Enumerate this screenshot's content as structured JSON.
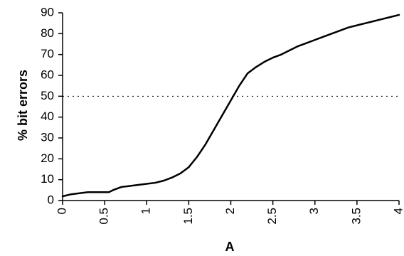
{
  "chart_data": {
    "type": "line",
    "title": "",
    "xlabel": "A",
    "ylabel": "% bit errors",
    "xlim": [
      0,
      4
    ],
    "ylim": [
      0,
      90
    ],
    "x_ticks": [
      0,
      0.5,
      1,
      1.5,
      2,
      2.5,
      3,
      3.5,
      4
    ],
    "x_tick_labels": [
      "0",
      "0.5",
      "1",
      "1.5",
      "2",
      "2.5",
      "3",
      "3.5",
      "4"
    ],
    "y_ticks": [
      0,
      10,
      20,
      30,
      40,
      50,
      60,
      70,
      80,
      90
    ],
    "y_tick_labels": [
      "0",
      "10",
      "20",
      "30",
      "40",
      "50",
      "60",
      "70",
      "80",
      "90"
    ],
    "grid": false,
    "legend": "none",
    "reference_line": {
      "y": 50,
      "style": "dotted"
    },
    "series": [
      {
        "x": [
          0,
          0.1,
          0.2,
          0.3,
          0.4,
          0.5,
          0.55,
          0.6,
          0.7,
          0.8,
          0.9,
          1.0,
          1.1,
          1.2,
          1.3,
          1.4,
          1.5,
          1.6,
          1.7,
          1.8,
          1.9,
          2.0,
          2.1,
          2.2,
          2.3,
          2.4,
          2.5,
          2.6,
          2.7,
          2.8,
          2.9,
          3.0,
          3.1,
          3.2,
          3.3,
          3.4,
          3.5,
          3.6,
          3.7,
          3.8,
          3.9,
          4.0
        ],
        "y": [
          2,
          3,
          3.5,
          4,
          4,
          4,
          4,
          5,
          6.5,
          7,
          7.5,
          8,
          8.5,
          9.5,
          11,
          13,
          16,
          21,
          27,
          34,
          41,
          48,
          55,
          61,
          64,
          66.5,
          68.5,
          70,
          72,
          74,
          75.5,
          77,
          78.5,
          80,
          81.5,
          83,
          84,
          85,
          86,
          87,
          88,
          89
        ]
      }
    ]
  }
}
